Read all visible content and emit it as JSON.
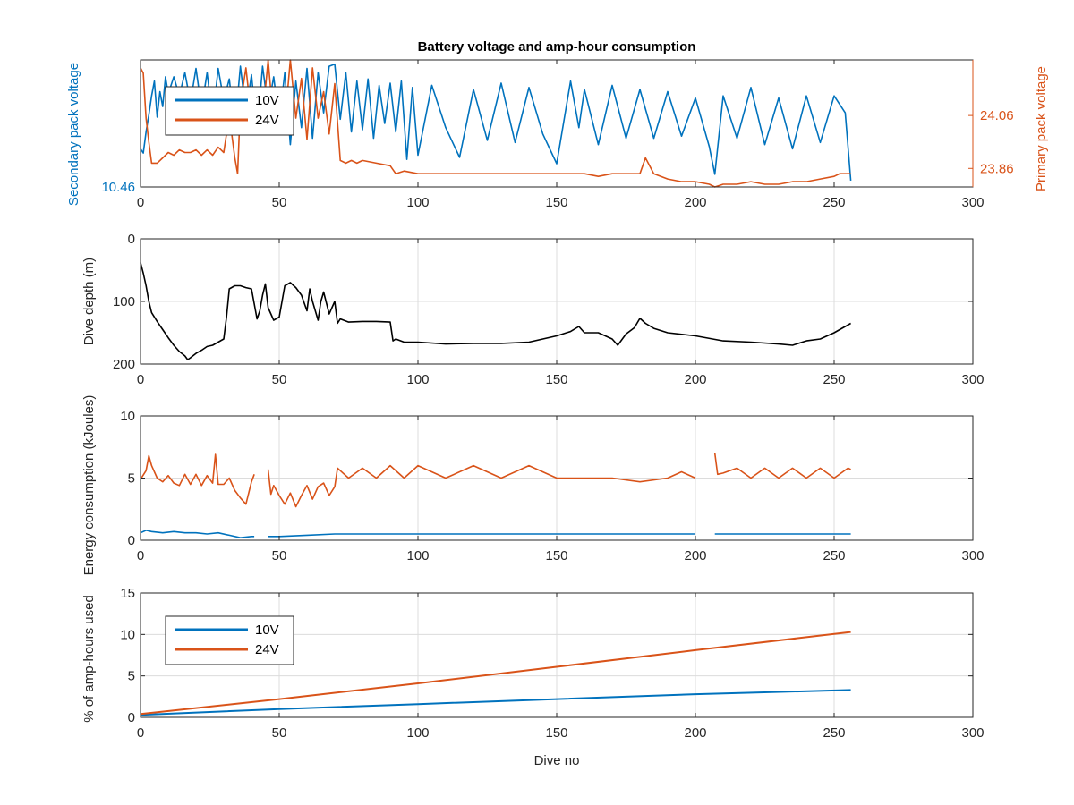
{
  "colors": {
    "blue": "#0072bd",
    "orange": "#d95319",
    "black": "#000000",
    "axis": "#262626"
  },
  "chart_data": [
    {
      "type": "line",
      "title": "Battery voltage and amp-hour consumption",
      "xlabel": "",
      "ylabel_left": "Secondary pack voltage",
      "ylabel_right": "Primary pack voltage",
      "xlim": [
        0,
        300
      ],
      "xticks": [
        0,
        50,
        100,
        150,
        200,
        250,
        300
      ],
      "ylim_left": [
        10.46,
        10.52
      ],
      "yticks_left": [
        10.46
      ],
      "ylim_right": [
        23.79,
        24.27
      ],
      "yticks_right": [
        23.86,
        24.06
      ],
      "legend": {
        "placement": "top-left",
        "entries": [
          "10V",
          "24V"
        ]
      },
      "series": [
        {
          "name": "10V",
          "axis": "left",
          "color": "#0072bd",
          "x": [
            0,
            1,
            2,
            3,
            4,
            5,
            6,
            7,
            8,
            9,
            10,
            12,
            14,
            16,
            18,
            20,
            22,
            24,
            26,
            28,
            30,
            32,
            34,
            36,
            38,
            40,
            42,
            44,
            46,
            48,
            50,
            52,
            54,
            56,
            58,
            60,
            62,
            64,
            66,
            68,
            70,
            72,
            74,
            76,
            78,
            80,
            82,
            84,
            86,
            88,
            90,
            92,
            94,
            96,
            98,
            100,
            105,
            110,
            115,
            120,
            125,
            130,
            135,
            140,
            145,
            150,
            155,
            158,
            160,
            165,
            170,
            175,
            180,
            185,
            190,
            195,
            200,
            205,
            207,
            210,
            215,
            220,
            225,
            230,
            235,
            240,
            245,
            250,
            254,
            256
          ],
          "y": [
            10.478,
            10.476,
            10.486,
            10.494,
            10.503,
            10.51,
            10.493,
            10.505,
            10.498,
            10.512,
            10.504,
            10.512,
            10.503,
            10.514,
            10.5,
            10.516,
            10.497,
            10.514,
            10.492,
            10.516,
            10.501,
            10.511,
            10.488,
            10.517,
            10.495,
            10.513,
            10.486,
            10.517,
            10.497,
            10.512,
            10.491,
            10.514,
            10.48,
            10.51,
            10.488,
            10.516,
            10.483,
            10.514,
            10.495,
            10.517,
            10.518,
            10.492,
            10.514,
            10.486,
            10.51,
            10.487,
            10.511,
            10.483,
            10.508,
            10.49,
            10.509,
            10.486,
            10.51,
            10.473,
            10.507,
            10.475,
            10.508,
            10.488,
            10.474,
            10.506,
            10.482,
            10.509,
            10.481,
            10.507,
            10.485,
            10.471,
            10.51,
            10.488,
            10.506,
            10.48,
            10.508,
            10.483,
            10.506,
            10.483,
            10.505,
            10.484,
            10.502,
            10.479,
            10.466,
            10.503,
            10.483,
            10.507,
            10.48,
            10.502,
            10.478,
            10.503,
            10.481,
            10.503,
            10.495,
            10.463
          ]
        },
        {
          "name": "24V",
          "axis": "right",
          "color": "#d95319",
          "x": [
            0,
            1,
            2,
            3,
            4,
            6,
            8,
            10,
            12,
            14,
            16,
            18,
            20,
            22,
            24,
            26,
            28,
            30,
            32,
            34,
            35,
            36,
            38,
            40,
            42,
            44,
            46,
            48,
            50,
            52,
            54,
            56,
            58,
            60,
            62,
            64,
            66,
            68,
            70,
            72,
            74,
            76,
            78,
            80,
            85,
            90,
            92,
            95,
            100,
            105,
            110,
            115,
            120,
            125,
            130,
            135,
            140,
            145,
            150,
            155,
            160,
            165,
            170,
            175,
            180,
            182,
            185,
            190,
            195,
            200,
            205,
            207,
            210,
            215,
            220,
            225,
            230,
            235,
            240,
            245,
            250,
            252,
            256
          ],
          "y": [
            24.24,
            24.22,
            24.05,
            23.96,
            23.88,
            23.88,
            23.9,
            23.92,
            23.91,
            23.93,
            23.92,
            23.92,
            23.93,
            23.91,
            23.93,
            23.91,
            23.94,
            23.92,
            24.06,
            23.9,
            23.84,
            24.1,
            24.24,
            24.05,
            24.15,
            24.05,
            24.27,
            24.03,
            24.12,
            24.03,
            24.27,
            24.05,
            24.2,
            23.97,
            24.24,
            24.05,
            24.15,
            23.99,
            24.18,
            23.89,
            23.88,
            23.89,
            23.88,
            23.89,
            23.88,
            23.87,
            23.84,
            23.85,
            23.84,
            23.84,
            23.84,
            23.84,
            23.84,
            23.84,
            23.84,
            23.84,
            23.84,
            23.84,
            23.84,
            23.84,
            23.84,
            23.83,
            23.84,
            23.84,
            23.84,
            23.9,
            23.84,
            23.82,
            23.81,
            23.81,
            23.8,
            23.79,
            23.8,
            23.8,
            23.81,
            23.8,
            23.8,
            23.81,
            23.81,
            23.82,
            23.83,
            23.84,
            23.84
          ]
        }
      ]
    },
    {
      "type": "line",
      "title": "",
      "xlabel": "",
      "ylabel": "Dive depth (m)",
      "xlim": [
        0,
        300
      ],
      "xticks": [
        0,
        50,
        100,
        150,
        200,
        250,
        300
      ],
      "ylim": [
        0,
        200
      ],
      "yticks": [
        0,
        100,
        200
      ],
      "y_reversed": true,
      "series": [
        {
          "color": "#000000",
          "x": [
            0,
            1,
            2,
            3,
            4,
            6,
            8,
            10,
            12,
            14,
            16,
            17,
            18,
            20,
            22,
            24,
            26,
            28,
            30,
            31,
            32,
            34,
            36,
            38,
            40,
            42,
            43,
            44,
            45,
            46,
            48,
            50,
            51,
            52,
            54,
            56,
            58,
            60,
            61,
            62,
            64,
            65,
            66,
            68,
            69,
            70,
            71,
            72,
            75,
            80,
            85,
            90,
            91,
            92,
            95,
            100,
            110,
            120,
            130,
            140,
            150,
            155,
            158,
            160,
            165,
            170,
            172,
            175,
            178,
            180,
            182,
            185,
            190,
            200,
            210,
            220,
            230,
            235,
            240,
            245,
            250,
            254,
            256
          ],
          "y": [
            38,
            55,
            75,
            100,
            118,
            132,
            145,
            158,
            170,
            180,
            187,
            193,
            190,
            183,
            178,
            172,
            170,
            165,
            160,
            125,
            80,
            75,
            75,
            78,
            80,
            128,
            115,
            90,
            72,
            110,
            130,
            125,
            100,
            75,
            70,
            78,
            90,
            115,
            80,
            100,
            130,
            100,
            85,
            120,
            110,
            100,
            135,
            128,
            133,
            132,
            132,
            133,
            163,
            160,
            165,
            165,
            168,
            167,
            167,
            165,
            155,
            148,
            140,
            150,
            150,
            160,
            170,
            152,
            142,
            127,
            135,
            143,
            150,
            155,
            163,
            165,
            168,
            170,
            163,
            160,
            150,
            140,
            135
          ]
        }
      ]
    },
    {
      "type": "line",
      "title": "",
      "xlabel": "",
      "ylabel": "Energy consumption (kJoules)",
      "xlim": [
        0,
        300
      ],
      "xticks": [
        0,
        50,
        100,
        150,
        200,
        250,
        300
      ],
      "ylim": [
        0,
        10
      ],
      "yticks": [
        0,
        5,
        10
      ],
      "series": [
        {
          "color": "#d95319",
          "x": [
            0,
            2,
            3,
            4,
            6,
            8,
            10,
            12,
            14,
            16,
            18,
            20,
            22,
            24,
            26,
            27,
            28,
            30,
            32,
            34,
            36,
            38,
            40,
            41,
            null,
            46,
            47,
            48,
            50,
            52,
            54,
            56,
            58,
            60,
            62,
            64,
            66,
            68,
            70,
            71,
            72,
            75,
            80,
            85,
            90,
            95,
            100,
            110,
            120,
            130,
            140,
            150,
            160,
            170,
            180,
            190,
            195,
            200,
            null,
            207,
            208,
            210,
            215,
            220,
            225,
            230,
            235,
            240,
            245,
            250,
            255,
            256
          ],
          "y": [
            4.9,
            5.6,
            6.8,
            6.0,
            5.0,
            4.7,
            5.2,
            4.6,
            4.4,
            5.3,
            4.5,
            5.3,
            4.4,
            5.2,
            4.6,
            6.9,
            4.5,
            4.5,
            5.0,
            4.0,
            3.4,
            2.9,
            4.7,
            5.3,
            null,
            5.7,
            3.7,
            4.4,
            3.6,
            2.9,
            3.8,
            2.7,
            3.6,
            4.4,
            3.3,
            4.3,
            4.6,
            3.6,
            4.3,
            5.8,
            5.6,
            5.0,
            5.8,
            5.0,
            6.0,
            5.0,
            6.0,
            5.0,
            6.0,
            5.0,
            6.0,
            5.0,
            5.0,
            5.0,
            4.7,
            5.0,
            5.5,
            5.0,
            null,
            7.0,
            5.3,
            5.4,
            5.8,
            5.0,
            5.8,
            5.0,
            5.8,
            5.0,
            5.8,
            5.0,
            5.8,
            5.7
          ]
        },
        {
          "color": "#0072bd",
          "x": [
            0,
            2,
            4,
            8,
            12,
            16,
            20,
            24,
            28,
            32,
            36,
            40,
            41,
            null,
            46,
            50,
            60,
            70,
            80,
            90,
            100,
            120,
            140,
            160,
            180,
            200,
            null,
            207,
            220,
            240,
            256
          ],
          "y": [
            0.6,
            0.8,
            0.7,
            0.6,
            0.7,
            0.6,
            0.6,
            0.5,
            0.6,
            0.4,
            0.2,
            0.3,
            0.3,
            null,
            0.3,
            0.3,
            0.4,
            0.5,
            0.5,
            0.5,
            0.5,
            0.5,
            0.5,
            0.5,
            0.5,
            0.5,
            null,
            0.5,
            0.5,
            0.5,
            0.5
          ]
        }
      ]
    },
    {
      "type": "line",
      "title": "",
      "xlabel": "Dive no",
      "ylabel": "% of amp-hours used",
      "xlim": [
        0,
        300
      ],
      "xticks": [
        0,
        50,
        100,
        150,
        200,
        250,
        300
      ],
      "ylim": [
        0,
        15
      ],
      "yticks": [
        0,
        5,
        10,
        15
      ],
      "legend": {
        "placement": "top-left",
        "entries": [
          "10V",
          "24V"
        ]
      },
      "series": [
        {
          "name": "10V",
          "color": "#0072bd",
          "x": [
            0,
            50,
            100,
            150,
            200,
            256
          ],
          "y": [
            0.3,
            1.0,
            1.6,
            2.2,
            2.8,
            3.3
          ]
        },
        {
          "name": "24V",
          "color": "#d95319",
          "x": [
            0,
            50,
            100,
            150,
            200,
            256
          ],
          "y": [
            0.4,
            2.2,
            4.1,
            6.1,
            8.1,
            10.3
          ]
        }
      ]
    }
  ]
}
